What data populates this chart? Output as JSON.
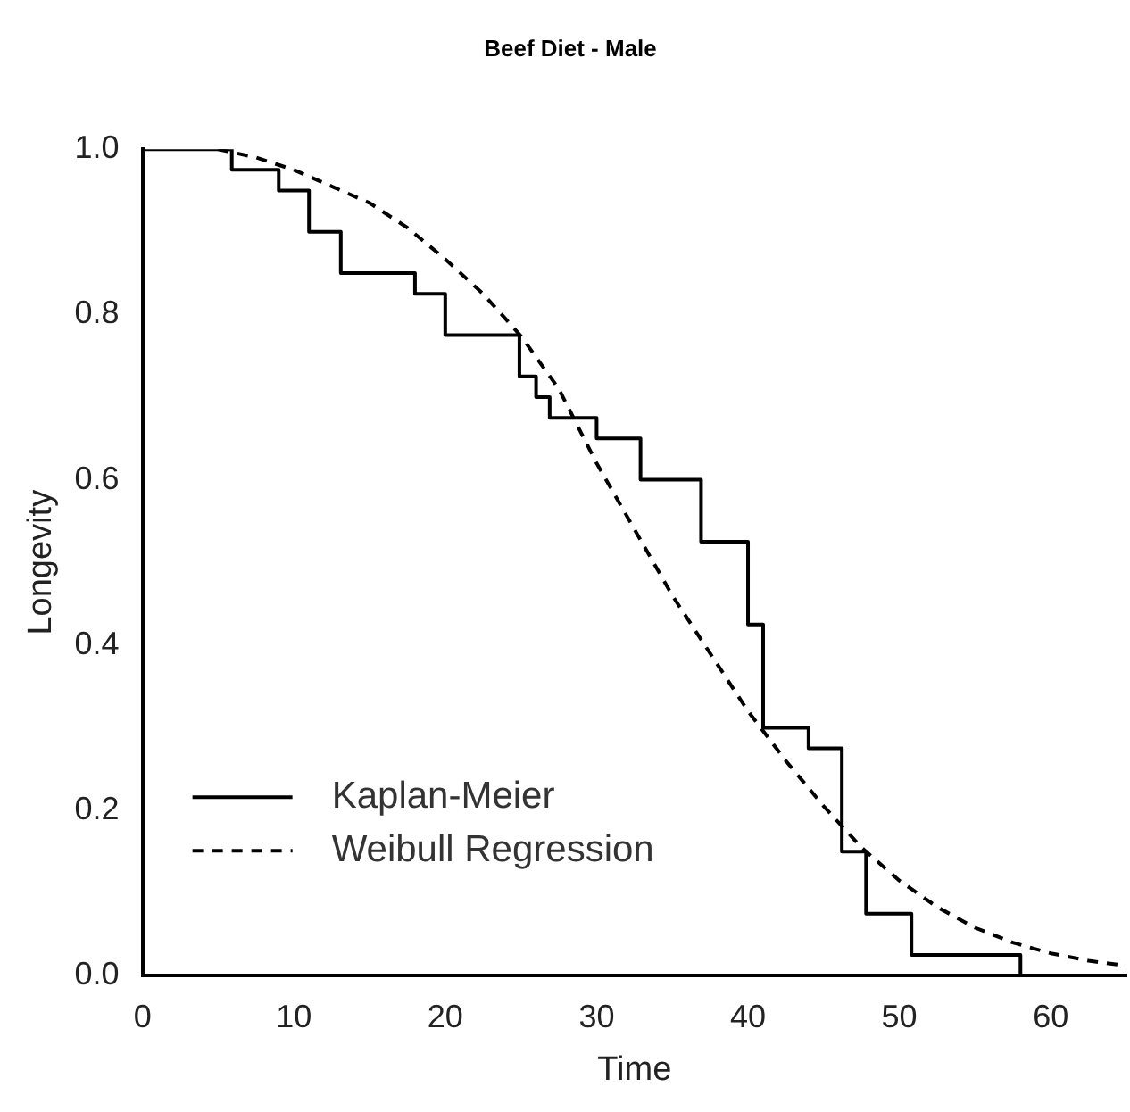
{
  "chart_data": {
    "type": "line",
    "title": "Beef Diet - Male",
    "xlabel": "Time",
    "ylabel": "Longevity",
    "xlim": [
      0,
      65
    ],
    "xticks": [
      0,
      10,
      20,
      30,
      40,
      50,
      60
    ],
    "ylim": [
      0,
      1
    ],
    "yticks": [
      {
        "value": 0,
        "label": "0.0"
      },
      0.2,
      0.4,
      0.6,
      0.8,
      {
        "value": 1,
        "label": "1.0"
      }
    ],
    "grid": false,
    "legend": "bottom left",
    "marker": "none",
    "series": [
      {
        "name": "Kaplan-Meier",
        "type": "step",
        "color": "#000000",
        "line_style": "solid",
        "x": [
          0,
          5.9,
          9,
          11,
          13.1,
          18,
          20,
          24.9,
          26,
          26.9,
          30,
          32.9,
          36.9,
          40,
          41,
          44,
          46.2,
          47.8,
          50.8,
          58
        ],
        "values": [
          1,
          0.975,
          0.95,
          0.9,
          0.85,
          0.825,
          0.775,
          0.725,
          0.7,
          0.675,
          0.65,
          0.6,
          0.525,
          0.425,
          0.3,
          0.275,
          0.15,
          0.075,
          0.025,
          0
        ]
      },
      {
        "name": "Weibull Regression",
        "type": "line",
        "color": "#000000",
        "line_style": "dashed",
        "x": [
          5,
          7.5,
          10,
          12.5,
          15,
          17.5,
          20,
          22.5,
          25,
          27.5,
          30,
          32.5,
          35,
          37.5,
          40,
          42.5,
          45,
          47.5,
          50,
          52.5,
          55,
          57.5,
          60,
          62.5,
          65
        ],
        "values": [
          1,
          0.99,
          0.975,
          0.955,
          0.935,
          0.905,
          0.867,
          0.825,
          0.774,
          0.71,
          0.62,
          0.54,
          0.46,
          0.39,
          0.32,
          0.26,
          0.205,
          0.155,
          0.115,
          0.083,
          0.058,
          0.04,
          0.027,
          0.018,
          0.012
        ]
      }
    ]
  }
}
